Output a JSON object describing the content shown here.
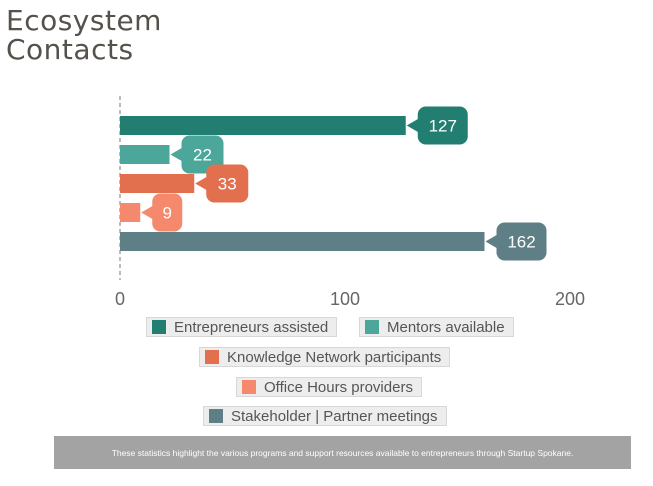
{
  "title_line1": "Ecosystem",
  "title_line2": "Contacts",
  "footer_text": "These statistics highlight the various programs and support resources available to entrepreneurs through Startup Spokane.",
  "chart_data": {
    "type": "bar",
    "orientation": "horizontal",
    "categories": [
      "Entrepreneurs assisted",
      "Mentors available",
      "Knowledge Network participants",
      "Office Hours providers",
      "Stakeholder | Partner meetings"
    ],
    "values": [
      127,
      22,
      33,
      9,
      162
    ],
    "colors": [
      "#237e72",
      "#4ca69a",
      "#e2704f",
      "#f5896e",
      "#5f7f86"
    ],
    "xlim": [
      0,
      200
    ],
    "xticks": [
      0,
      100,
      200
    ],
    "grid": false,
    "data_labels": true,
    "legend_position": "bottom"
  },
  "legend": [
    {
      "label": "Entrepreneurs assisted",
      "color": "#237e72"
    },
    {
      "label": "Mentors available",
      "color": "#4ca69a"
    },
    {
      "label": "Knowledge Network participants",
      "color": "#e2704f"
    },
    {
      "label": "Office Hours providers",
      "color": "#f5896e"
    },
    {
      "label": "Stakeholder | Partner meetings",
      "color": "#5f7f86"
    }
  ]
}
